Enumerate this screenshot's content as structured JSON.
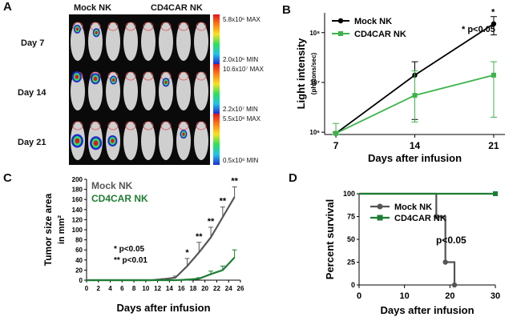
{
  "panels": {
    "A": {
      "letter": "A",
      "columns": [
        "Mock NK",
        "CD4CAR NK"
      ],
      "rows": [
        "Day 7",
        "Day 14",
        "Day 21"
      ],
      "scales": [
        {
          "max": "5.8x10⁶ MAX",
          "min": "2.0x10⁶ MIN"
        },
        {
          "max": "10.6x10⁷ MAX",
          "min": "2.2x10⁷ MIN"
        },
        {
          "max": "5.5x10⁸ MAX",
          "min": "0.5x10⁸ MIN"
        }
      ],
      "signal_colors": [
        "#1f2bd6",
        "#20c4e8",
        "#2ee05a",
        "#f6e21c",
        "#ff7b12",
        "#e4131c"
      ]
    },
    "B": {
      "letter": "B"
    },
    "C": {
      "letter": "C"
    },
    "D": {
      "letter": "D"
    }
  },
  "chart_data": [
    {
      "id": "B",
      "type": "line",
      "yscale": "log",
      "xlabel": "Days after infusion",
      "ylabel": "Light intensity",
      "ylabel_unit": "(photons/sec)",
      "x": [
        7,
        14,
        21
      ],
      "xticks": [
        "7",
        "14",
        "21"
      ],
      "ytick_labels": [
        {
          "value": 1000000,
          "label": "10⁶"
        },
        {
          "value": 10000000,
          "label": "10⁷"
        },
        {
          "value": 100000000,
          "label": "10⁸"
        }
      ],
      "ylim": [
        900000,
        250000000
      ],
      "series": [
        {
          "name": "Mock NK",
          "color": "#000000",
          "marker": "circle",
          "values": [
            950000,
            14000000,
            150000000
          ],
          "err_low": [
            900000,
            1800000,
            90000000
          ],
          "err_high": [
            1000000,
            26000000,
            210000000
          ]
        },
        {
          "name": "CD4CAR NK",
          "color": "#3cb44b",
          "marker": "square",
          "values": [
            950000,
            5500000,
            14000000
          ],
          "err_low": [
            900000,
            1600000,
            2000000
          ],
          "err_high": [
            1500000,
            17000000,
            26000000
          ]
        }
      ],
      "annotations": [
        {
          "text": "* p<0.05"
        },
        {
          "text": "*",
          "x": 21
        }
      ]
    },
    {
      "id": "C",
      "type": "line",
      "xlabel": "Days after infusion",
      "ylabel": "Tumor size area",
      "ylabel_unit": "in mm²",
      "x_ticks": [
        0,
        2,
        4,
        6,
        8,
        10,
        12,
        14,
        16,
        18,
        20,
        22,
        24,
        26
      ],
      "y_ticks": [
        0,
        20,
        40,
        60,
        80,
        100,
        120,
        140,
        160,
        180,
        200
      ],
      "xlim": [
        0,
        26
      ],
      "ylim": [
        0,
        200
      ],
      "series": [
        {
          "name": "Mock NK",
          "color": "#555555",
          "x": [
            0,
            9,
            11,
            13,
            15,
            17,
            19,
            21,
            23,
            25
          ],
          "values": [
            0,
            0,
            0,
            2,
            5,
            28,
            55,
            85,
            125,
            165
          ],
          "err": [
            0,
            0,
            0,
            1,
            3,
            15,
            20,
            20,
            20,
            20
          ]
        },
        {
          "name": "CD4CAR NK",
          "color": "#1e7d34",
          "x": [
            0,
            13,
            15,
            17,
            19,
            21,
            23,
            25
          ],
          "values": [
            0,
            0,
            0,
            1,
            3,
            12,
            20,
            45
          ],
          "err": [
            0,
            0,
            0,
            1,
            2,
            6,
            8,
            15
          ]
        }
      ],
      "significance_markers": [
        {
          "x": 17,
          "text": "*"
        },
        {
          "x": 19,
          "text": "**"
        },
        {
          "x": 21,
          "text": "**"
        },
        {
          "x": 23,
          "text": "**"
        },
        {
          "x": 25,
          "text": "**"
        }
      ],
      "annotations": [
        "*   p<0.05",
        "** p<0.01"
      ]
    },
    {
      "id": "D",
      "type": "line",
      "style": "step",
      "xlabel": "Days after infusion",
      "ylabel": "Percent survival",
      "x_ticks": [
        0,
        10,
        20,
        30
      ],
      "y_ticks": [
        0,
        25,
        50,
        75,
        100
      ],
      "xlim": [
        0,
        30
      ],
      "ylim": [
        0,
        100
      ],
      "series": [
        {
          "name": "Mock NK",
          "color": "#555555",
          "marker": "circle",
          "x": [
            0,
            17,
            19,
            21
          ],
          "values": [
            100,
            75,
            25,
            0
          ]
        },
        {
          "name": "CD4CAR NK",
          "color": "#1e7d34",
          "marker": "square",
          "x": [
            0,
            30
          ],
          "values": [
            100,
            100
          ]
        }
      ],
      "annotations": [
        "p<0.05"
      ]
    }
  ]
}
